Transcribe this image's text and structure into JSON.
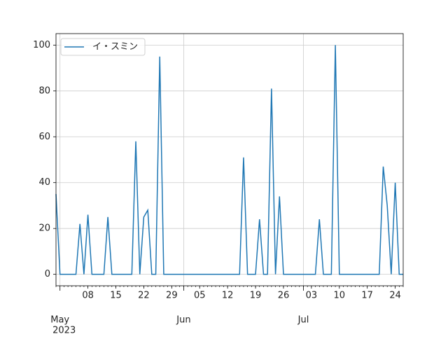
{
  "chart_data": {
    "type": "line",
    "x": [
      "2023-04-30",
      "2023-05-01",
      "2023-05-02",
      "2023-05-03",
      "2023-05-04",
      "2023-05-05",
      "2023-05-06",
      "2023-05-07",
      "2023-05-08",
      "2023-05-09",
      "2023-05-10",
      "2023-05-11",
      "2023-05-12",
      "2023-05-13",
      "2023-05-14",
      "2023-05-15",
      "2023-05-16",
      "2023-05-17",
      "2023-05-18",
      "2023-05-19",
      "2023-05-20",
      "2023-05-21",
      "2023-05-22",
      "2023-05-23",
      "2023-05-24",
      "2023-05-25",
      "2023-05-26",
      "2023-05-27",
      "2023-05-28",
      "2023-05-29",
      "2023-05-30",
      "2023-05-31",
      "2023-06-01",
      "2023-06-02",
      "2023-06-03",
      "2023-06-04",
      "2023-06-05",
      "2023-06-06",
      "2023-06-07",
      "2023-06-08",
      "2023-06-09",
      "2023-06-10",
      "2023-06-11",
      "2023-06-12",
      "2023-06-13",
      "2023-06-14",
      "2023-06-15",
      "2023-06-16",
      "2023-06-17",
      "2023-06-18",
      "2023-06-19",
      "2023-06-20",
      "2023-06-21",
      "2023-06-22",
      "2023-06-23",
      "2023-06-24",
      "2023-06-25",
      "2023-06-26",
      "2023-06-27",
      "2023-06-28",
      "2023-06-29",
      "2023-06-30",
      "2023-07-01",
      "2023-07-02",
      "2023-07-03",
      "2023-07-04",
      "2023-07-05",
      "2023-07-06",
      "2023-07-07",
      "2023-07-08",
      "2023-07-09",
      "2023-07-10",
      "2023-07-11",
      "2023-07-12",
      "2023-07-13",
      "2023-07-14",
      "2023-07-15",
      "2023-07-16",
      "2023-07-17",
      "2023-07-18",
      "2023-07-19",
      "2023-07-20",
      "2023-07-21",
      "2023-07-22",
      "2023-07-23",
      "2023-07-24",
      "2023-07-25",
      "2023-07-26"
    ],
    "series": [
      {
        "name": "イ・スミン",
        "color": "#1f77b4",
        "values": [
          35,
          0,
          0,
          0,
          0,
          0,
          22,
          0,
          26,
          0,
          0,
          0,
          0,
          25,
          0,
          0,
          0,
          0,
          0,
          0,
          58,
          0,
          25,
          28,
          0,
          0,
          95,
          0,
          0,
          0,
          0,
          0,
          0,
          0,
          0,
          0,
          0,
          0,
          0,
          0,
          0,
          0,
          0,
          0,
          0,
          0,
          0,
          51,
          0,
          0,
          0,
          24,
          0,
          0,
          81,
          0,
          34,
          0,
          0,
          0,
          0,
          0,
          0,
          0,
          0,
          0,
          24,
          0,
          0,
          0,
          100,
          0,
          0,
          0,
          0,
          0,
          0,
          0,
          0,
          0,
          0,
          0,
          47,
          30,
          0,
          40,
          0,
          0
        ]
      }
    ],
    "xlim": [
      "2023-04-30",
      "2023-07-26"
    ],
    "xticks": [
      {
        "value": "2023-05-08",
        "label": "08"
      },
      {
        "value": "2023-05-15",
        "label": "15"
      },
      {
        "value": "2023-05-22",
        "label": "22"
      },
      {
        "value": "2023-05-29",
        "label": "29"
      },
      {
        "value": "2023-06-05",
        "label": "05"
      },
      {
        "value": "2023-06-12",
        "label": "12"
      },
      {
        "value": "2023-06-19",
        "label": "19"
      },
      {
        "value": "2023-06-26",
        "label": "26"
      },
      {
        "value": "2023-07-03",
        "label": "03"
      },
      {
        "value": "2023-07-10",
        "label": "10"
      },
      {
        "value": "2023-07-17",
        "label": "17"
      },
      {
        "value": "2023-07-24",
        "label": "24"
      }
    ],
    "month_ticks": [
      {
        "value": "2023-05-01",
        "label": "May",
        "year": "2023"
      },
      {
        "value": "2023-06-01",
        "label": "Jun"
      },
      {
        "value": "2023-07-01",
        "label": "Jul"
      }
    ],
    "ylim": [
      -5,
      105
    ],
    "yticks": [
      0,
      20,
      40,
      60,
      80,
      100
    ],
    "grid": true,
    "legend": "upper left"
  }
}
